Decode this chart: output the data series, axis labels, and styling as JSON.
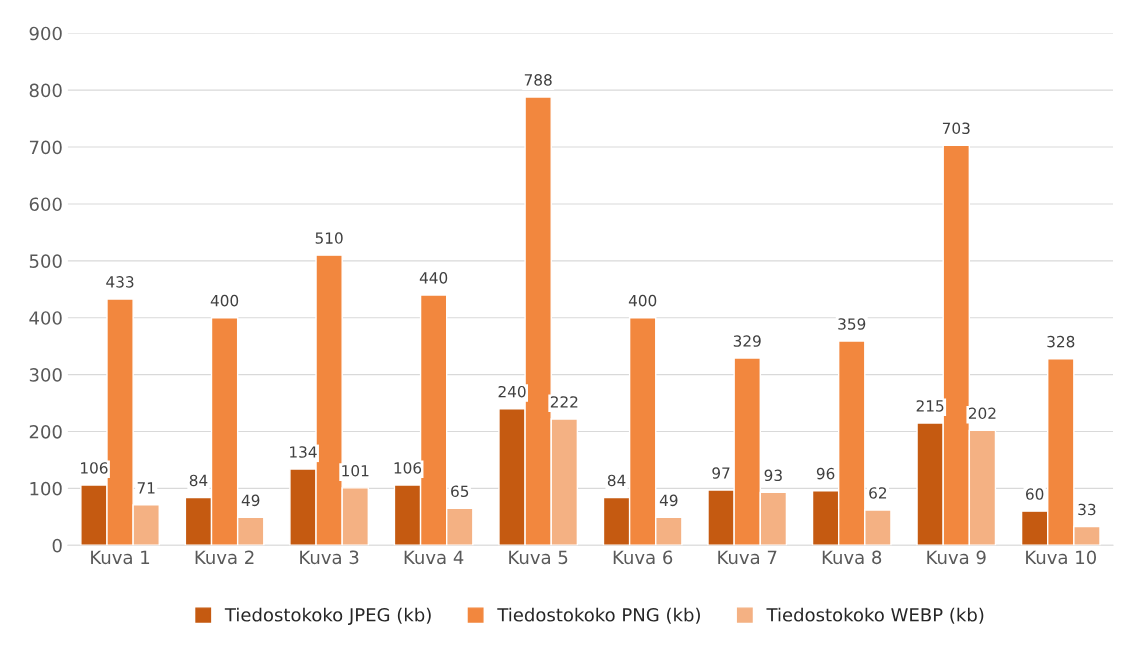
{
  "chart_data": {
    "type": "bar",
    "categories": [
      "Kuva 1",
      "Kuva 2",
      "Kuva 3",
      "Kuva 4",
      "Kuva 5",
      "Kuva 6",
      "Kuva 7",
      "Kuva 8",
      "Kuva 9",
      "Kuva 10"
    ],
    "series": [
      {
        "name": "Tiedostokoko JPEG (kb)",
        "color": "#c55a11",
        "values": [
          106,
          84,
          134,
          106,
          240,
          84,
          97,
          96,
          215,
          60
        ]
      },
      {
        "name": "Tiedostokoko PNG (kb)",
        "color": "#f2873e",
        "values": [
          433,
          400,
          510,
          440,
          788,
          400,
          329,
          359,
          703,
          328
        ]
      },
      {
        "name": "Tiedostokoko WEBP (kb)",
        "color": "#f4b183",
        "values": [
          71,
          49,
          101,
          65,
          222,
          49,
          93,
          62,
          202,
          33
        ]
      }
    ],
    "ylim": [
      0,
      900
    ],
    "yticks": [
      0,
      100,
      200,
      300,
      400,
      500,
      600,
      700,
      800,
      900
    ],
    "grid": "y",
    "legend": "bottom",
    "data_labels": true
  }
}
